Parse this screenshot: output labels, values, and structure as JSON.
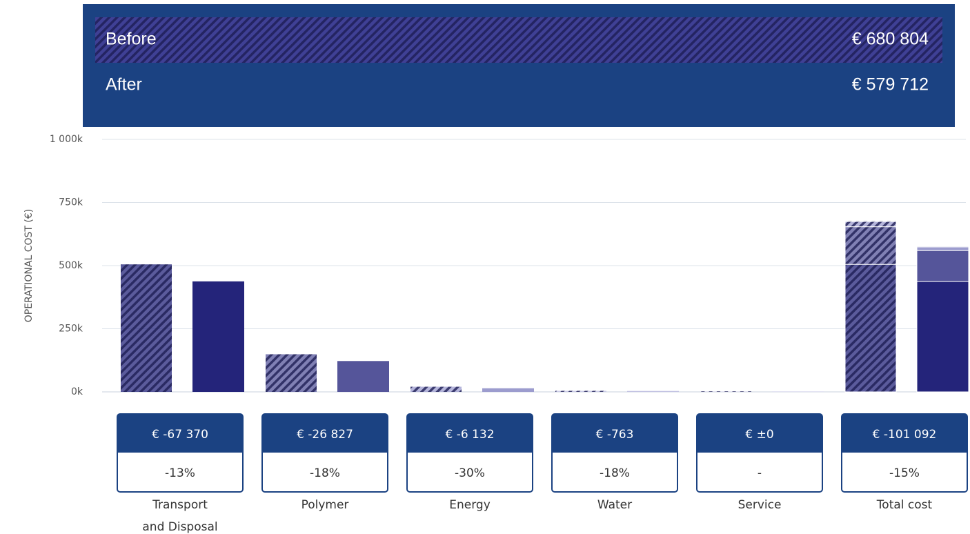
{
  "chart_data": {
    "type": "bar",
    "summary": [
      {
        "label": "Before",
        "value": 680804,
        "value_label": "€ 680 804"
      },
      {
        "label": "After",
        "value": 579712,
        "value_label": "€ 579 712"
      }
    ],
    "y_axis_label": "OPERATIONAL COST (€)",
    "categories": [
      "Transport and Disposal",
      "Polymer",
      "Energy",
      "Water",
      "Service"
    ],
    "total_label": "Total cost",
    "category_colors": [
      "#24247a",
      "#55559a",
      "#9c9cce",
      "#c2c2e2",
      "#dcdcee"
    ],
    "series": [
      {
        "name": "Before",
        "hatched": true,
        "values": [
          505000,
          149000,
          20400,
          4240,
          2164
        ]
      },
      {
        "name": "After",
        "hatched": false,
        "values": [
          437630,
          122173,
          14268,
          3477,
          2164
        ]
      }
    ],
    "change_labels": [
      "€ -67 370",
      "€ -26 827",
      "€ -6 132",
      "€ -763",
      "€ ±0",
      "€ -101 092"
    ],
    "percent_labels": [
      "-13%",
      "-18%",
      "-30%",
      "-18%",
      "-",
      "-15%"
    ],
    "ylim": [
      0,
      1000000
    ],
    "yticks": [
      {
        "value": 0,
        "label": "0k"
      },
      {
        "value": 250000,
        "label": "250k"
      },
      {
        "value": 500000,
        "label": "500k"
      },
      {
        "value": 750000,
        "label": "750k"
      },
      {
        "value": 1000000,
        "label": "1 000k"
      }
    ],
    "grid": true
  }
}
